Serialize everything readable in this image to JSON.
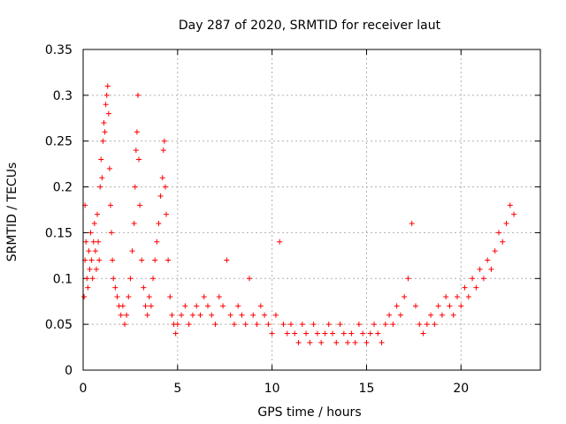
{
  "chart_data": {
    "type": "scatter",
    "title": "Day 287 of 2020, SRMTID for receiver laut",
    "xlabel": "GPS time / hours",
    "ylabel": "SRMTID / TECUs",
    "xlim": [
      0,
      24.2
    ],
    "ylim": [
      0,
      0.35
    ],
    "xticks": [
      0,
      5,
      10,
      15,
      20
    ],
    "xtick_labels": [
      "0",
      "5",
      "10",
      "15",
      "20"
    ],
    "yticks": [
      0,
      0.05,
      0.1,
      0.15,
      0.2,
      0.25,
      0.3,
      0.35
    ],
    "ytick_labels": [
      "0",
      "0.05",
      "0.1",
      "0.15",
      "0.2",
      "0.25",
      "0.3",
      "0.35"
    ],
    "grid": true,
    "marker": "+",
    "color": "#ff0000",
    "series": [
      {
        "name": "SRMTID",
        "points": [
          [
            0.05,
            0.08
          ],
          [
            0.1,
            0.12
          ],
          [
            0.1,
            0.18
          ],
          [
            0.15,
            0.14
          ],
          [
            0.2,
            0.1
          ],
          [
            0.25,
            0.09
          ],
          [
            0.3,
            0.13
          ],
          [
            0.35,
            0.11
          ],
          [
            0.4,
            0.15
          ],
          [
            0.45,
            0.12
          ],
          [
            0.5,
            0.1
          ],
          [
            0.55,
            0.14
          ],
          [
            0.6,
            0.16
          ],
          [
            0.65,
            0.13
          ],
          [
            0.7,
            0.11
          ],
          [
            0.75,
            0.17
          ],
          [
            0.8,
            0.14
          ],
          [
            0.85,
            0.12
          ],
          [
            0.9,
            0.2
          ],
          [
            0.95,
            0.23
          ],
          [
            1.0,
            0.21
          ],
          [
            1.05,
            0.25
          ],
          [
            1.1,
            0.27
          ],
          [
            1.15,
            0.26
          ],
          [
            1.2,
            0.29
          ],
          [
            1.25,
            0.3
          ],
          [
            1.3,
            0.31
          ],
          [
            1.35,
            0.28
          ],
          [
            1.4,
            0.22
          ],
          [
            1.45,
            0.18
          ],
          [
            1.5,
            0.15
          ],
          [
            1.55,
            0.12
          ],
          [
            1.6,
            0.1
          ],
          [
            1.7,
            0.09
          ],
          [
            1.8,
            0.08
          ],
          [
            1.9,
            0.07
          ],
          [
            2.0,
            0.06
          ],
          [
            2.1,
            0.07
          ],
          [
            2.2,
            0.05
          ],
          [
            2.3,
            0.06
          ],
          [
            2.4,
            0.08
          ],
          [
            2.5,
            0.1
          ],
          [
            2.6,
            0.13
          ],
          [
            2.7,
            0.16
          ],
          [
            2.75,
            0.2
          ],
          [
            2.8,
            0.24
          ],
          [
            2.85,
            0.26
          ],
          [
            2.9,
            0.3
          ],
          [
            2.95,
            0.23
          ],
          [
            3.0,
            0.18
          ],
          [
            3.1,
            0.12
          ],
          [
            3.2,
            0.09
          ],
          [
            3.3,
            0.07
          ],
          [
            3.4,
            0.06
          ],
          [
            3.5,
            0.08
          ],
          [
            3.6,
            0.07
          ],
          [
            3.7,
            0.1
          ],
          [
            3.8,
            0.12
          ],
          [
            3.9,
            0.14
          ],
          [
            4.0,
            0.16
          ],
          [
            4.1,
            0.19
          ],
          [
            4.2,
            0.21
          ],
          [
            4.25,
            0.24
          ],
          [
            4.3,
            0.25
          ],
          [
            4.35,
            0.2
          ],
          [
            4.4,
            0.17
          ],
          [
            4.5,
            0.12
          ],
          [
            4.6,
            0.08
          ],
          [
            4.7,
            0.06
          ],
          [
            4.8,
            0.05
          ],
          [
            4.9,
            0.04
          ],
          [
            5.0,
            0.05
          ],
          [
            5.2,
            0.06
          ],
          [
            5.4,
            0.07
          ],
          [
            5.6,
            0.05
          ],
          [
            5.8,
            0.06
          ],
          [
            6.0,
            0.07
          ],
          [
            6.2,
            0.06
          ],
          [
            6.4,
            0.08
          ],
          [
            6.6,
            0.07
          ],
          [
            6.8,
            0.06
          ],
          [
            7.0,
            0.05
          ],
          [
            7.2,
            0.08
          ],
          [
            7.4,
            0.07
          ],
          [
            7.6,
            0.12
          ],
          [
            7.8,
            0.06
          ],
          [
            8.0,
            0.05
          ],
          [
            8.2,
            0.07
          ],
          [
            8.4,
            0.06
          ],
          [
            8.6,
            0.05
          ],
          [
            8.8,
            0.1
          ],
          [
            9.0,
            0.06
          ],
          [
            9.2,
            0.05
          ],
          [
            9.4,
            0.07
          ],
          [
            9.6,
            0.06
          ],
          [
            9.8,
            0.05
          ],
          [
            10.0,
            0.04
          ],
          [
            10.2,
            0.06
          ],
          [
            10.4,
            0.14
          ],
          [
            10.6,
            0.05
          ],
          [
            10.8,
            0.04
          ],
          [
            11.0,
            0.05
          ],
          [
            11.2,
            0.04
          ],
          [
            11.4,
            0.03
          ],
          [
            11.6,
            0.05
          ],
          [
            11.8,
            0.04
          ],
          [
            12.0,
            0.03
          ],
          [
            12.2,
            0.05
          ],
          [
            12.4,
            0.04
          ],
          [
            12.6,
            0.03
          ],
          [
            12.8,
            0.04
          ],
          [
            13.0,
            0.05
          ],
          [
            13.2,
            0.04
          ],
          [
            13.4,
            0.03
          ],
          [
            13.6,
            0.05
          ],
          [
            13.8,
            0.04
          ],
          [
            14.0,
            0.03
          ],
          [
            14.2,
            0.04
          ],
          [
            14.4,
            0.03
          ],
          [
            14.6,
            0.05
          ],
          [
            14.8,
            0.04
          ],
          [
            15.0,
            0.03
          ],
          [
            15.2,
            0.04
          ],
          [
            15.4,
            0.05
          ],
          [
            15.6,
            0.04
          ],
          [
            15.8,
            0.03
          ],
          [
            16.0,
            0.05
          ],
          [
            16.2,
            0.06
          ],
          [
            16.4,
            0.05
          ],
          [
            16.6,
            0.07
          ],
          [
            16.8,
            0.06
          ],
          [
            17.0,
            0.08
          ],
          [
            17.2,
            0.1
          ],
          [
            17.4,
            0.16
          ],
          [
            17.6,
            0.07
          ],
          [
            17.8,
            0.05
          ],
          [
            18.0,
            0.04
          ],
          [
            18.2,
            0.05
          ],
          [
            18.4,
            0.06
          ],
          [
            18.6,
            0.05
          ],
          [
            18.8,
            0.07
          ],
          [
            19.0,
            0.06
          ],
          [
            19.2,
            0.08
          ],
          [
            19.4,
            0.07
          ],
          [
            19.6,
            0.06
          ],
          [
            19.8,
            0.08
          ],
          [
            20.0,
            0.07
          ],
          [
            20.2,
            0.09
          ],
          [
            20.4,
            0.08
          ],
          [
            20.6,
            0.1
          ],
          [
            20.8,
            0.09
          ],
          [
            21.0,
            0.11
          ],
          [
            21.2,
            0.1
          ],
          [
            21.4,
            0.12
          ],
          [
            21.6,
            0.11
          ],
          [
            21.8,
            0.13
          ],
          [
            22.0,
            0.15
          ],
          [
            22.2,
            0.14
          ],
          [
            22.4,
            0.16
          ],
          [
            22.6,
            0.18
          ],
          [
            22.8,
            0.17
          ]
        ]
      }
    ]
  }
}
